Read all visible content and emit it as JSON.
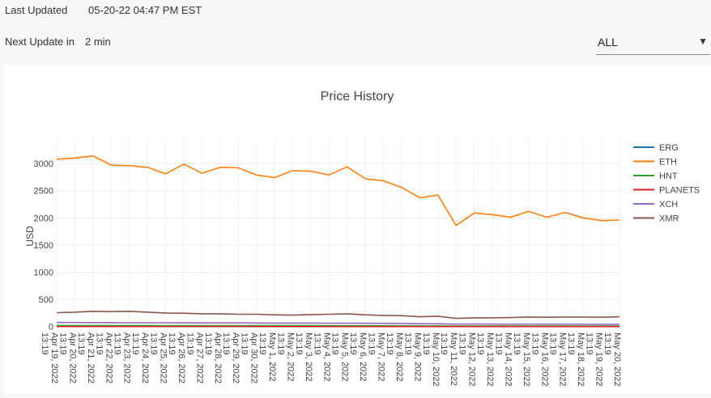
{
  "header": {
    "last_updated_label": "Last Updated",
    "last_updated_value": "05-20-22 04:47 PM EST",
    "next_update_label": "Next Update in",
    "next_update_value": "2 min"
  },
  "filter": {
    "selected": "ALL",
    "caret": "▼"
  },
  "chart_data": {
    "type": "line",
    "title": "Price History",
    "xlabel": "",
    "ylabel": "USD",
    "ylim": [
      -20,
      3300
    ],
    "yticks": [
      0,
      500,
      1000,
      1500,
      2000,
      2500,
      3000
    ],
    "grid": true,
    "legend_position": "right",
    "categories": [
      "Apr 19, 2022 13:19",
      "Apr 20, 2022 13:19",
      "Apr 21, 2022 13:19",
      "Apr 22, 2022 13:19",
      "Apr 23, 2022 13:19",
      "Apr 24, 2022 13:19",
      "Apr 25, 2022 13:19",
      "Apr 26, 2022 13:19",
      "Apr 27, 2022 13:19",
      "Apr 28, 2022 13:19",
      "Apr 29, 2022 13:19",
      "Apr 30, 2022 13:19",
      "May 1, 2022 13:19",
      "May 2, 2022 13:19",
      "May 3, 2022 13:19",
      "May 4, 2022 13:19",
      "May 5, 2022 13:19",
      "May 6, 2022 13:19",
      "May 7, 2022 13:19",
      "May 8, 2022 13:19",
      "May 9, 2022 13:19",
      "May 10, 2022 13:19",
      "May 11, 2022 13:19",
      "May 12, 2022 13:19",
      "May 13, 2022 13:19",
      "May 14, 2022 13:19",
      "May 15, 2022 13:19",
      "May 16, 2022 13:19",
      "May 17, 2022 13:19",
      "May 18, 2022 13:19",
      "May 19, 2022 13:19",
      "May 20, 2022 13:19"
    ],
    "series": [
      {
        "name": "ERG",
        "color": "#1f77b4",
        "values": [
          3,
          3,
          3,
          3,
          3,
          3,
          3,
          3,
          3,
          3,
          3,
          3,
          3,
          3,
          3,
          3,
          3,
          3,
          2,
          2,
          2,
          2,
          2,
          2,
          2,
          2,
          2,
          2,
          2,
          2,
          2,
          2
        ]
      },
      {
        "name": "ETH",
        "color": "#ff7f0e",
        "values": [
          3080,
          3100,
          3140,
          2970,
          2960,
          2930,
          2810,
          2990,
          2820,
          2930,
          2920,
          2790,
          2740,
          2870,
          2860,
          2790,
          2940,
          2720,
          2680,
          2560,
          2370,
          2420,
          1860,
          2090,
          2060,
          2010,
          2120,
          2010,
          2100,
          2000,
          1950,
          1960
        ]
      },
      {
        "name": "HNT",
        "color": "#2ca02c",
        "values": [
          19,
          19,
          19,
          18,
          18,
          18,
          17,
          17,
          17,
          17,
          16,
          16,
          15,
          15,
          15,
          15,
          14,
          14,
          13,
          12,
          11,
          11,
          9,
          9,
          9,
          9,
          9,
          9,
          9,
          8,
          8,
          8
        ]
      },
      {
        "name": "PLANETS",
        "color": "#d62728",
        "values": [
          0,
          0,
          0,
          0,
          0,
          0,
          0,
          0,
          0,
          0,
          0,
          0,
          0,
          0,
          0,
          0,
          0,
          0,
          0,
          0,
          0,
          0,
          0,
          0,
          0,
          0,
          0,
          0,
          0,
          0,
          0,
          0
        ]
      },
      {
        "name": "XCH",
        "color": "#9467bd",
        "values": [
          75,
          74,
          73,
          71,
          70,
          70,
          69,
          68,
          67,
          66,
          66,
          65,
          64,
          63,
          63,
          62,
          61,
          60,
          58,
          56,
          52,
          50,
          44,
          45,
          44,
          43,
          44,
          42,
          43,
          42,
          41,
          41
        ]
      },
      {
        "name": "XMR",
        "color": "#8c564b",
        "values": [
          255,
          265,
          280,
          275,
          280,
          265,
          250,
          245,
          235,
          235,
          225,
          225,
          215,
          210,
          220,
          225,
          235,
          215,
          205,
          200,
          180,
          190,
          150,
          160,
          160,
          165,
          175,
          170,
          175,
          175,
          170,
          180
        ]
      }
    ]
  }
}
